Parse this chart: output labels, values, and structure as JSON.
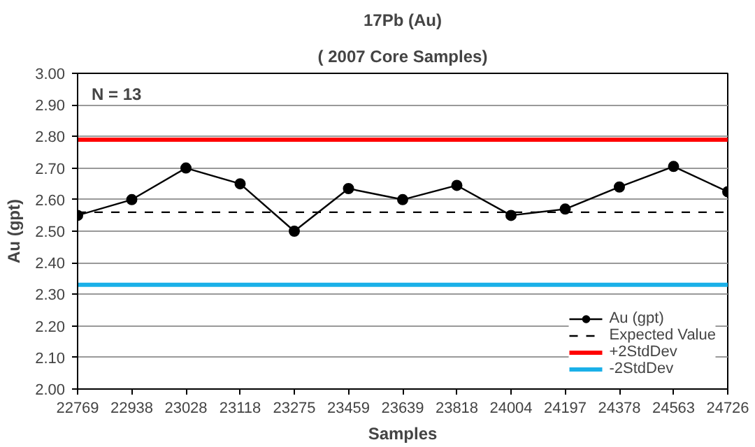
{
  "chart_data": {
    "type": "line",
    "title": "17Pb (Au)",
    "subtitle": "( 2007 Core Samples)",
    "xlabel": "Samples",
    "ylabel": "Au (gpt)",
    "categories": [
      "22769",
      "22938",
      "23028",
      "23118",
      "23275",
      "23459",
      "23639",
      "23818",
      "24004",
      "24197",
      "24378",
      "24563",
      "24726"
    ],
    "series": [
      {
        "name": "Au (gpt)",
        "color": "#000000",
        "marker": "circle",
        "line_style": "solid",
        "values": [
          2.55,
          2.6,
          2.7,
          2.65,
          2.5,
          2.635,
          2.6,
          2.645,
          2.55,
          2.57,
          2.64,
          2.705,
          2.625
        ]
      },
      {
        "name": "Expected Value",
        "color": "#000000",
        "marker": "none",
        "line_style": "dashed",
        "values": [
          2.56,
          2.56,
          2.56,
          2.56,
          2.56,
          2.56,
          2.56,
          2.56,
          2.56,
          2.56,
          2.56,
          2.56,
          2.56
        ]
      },
      {
        "name": "+2StdDev",
        "color": "#ff0000",
        "marker": "none",
        "line_style": "solid",
        "values": [
          2.79,
          2.79,
          2.79,
          2.79,
          2.79,
          2.79,
          2.79,
          2.79,
          2.79,
          2.79,
          2.79,
          2.79,
          2.79
        ]
      },
      {
        "name": "-2StdDev",
        "color": "#1ab0e8",
        "marker": "none",
        "line_style": "solid",
        "values": [
          2.33,
          2.33,
          2.33,
          2.33,
          2.33,
          2.33,
          2.33,
          2.33,
          2.33,
          2.33,
          2.33,
          2.33,
          2.33
        ]
      }
    ],
    "ylim": [
      2.0,
      3.0
    ],
    "yticks": [
      {
        "value": 2.0,
        "label": "2.00"
      },
      {
        "value": 2.1,
        "label": "2.10"
      },
      {
        "value": 2.2,
        "label": "2.20"
      },
      {
        "value": 2.3,
        "label": "2.30"
      },
      {
        "value": 2.4,
        "label": "2.40"
      },
      {
        "value": 2.5,
        "label": "2.50"
      },
      {
        "value": 2.6,
        "label": "2.60"
      },
      {
        "value": 2.7,
        "label": "2.70"
      },
      {
        "value": 2.8,
        "label": "2.80"
      },
      {
        "value": 2.9,
        "label": "2.90"
      },
      {
        "value": 3.0,
        "label": "3.00"
      }
    ],
    "grid": "y",
    "legend": "bottom right",
    "annotations": [
      "N = 13"
    ]
  }
}
